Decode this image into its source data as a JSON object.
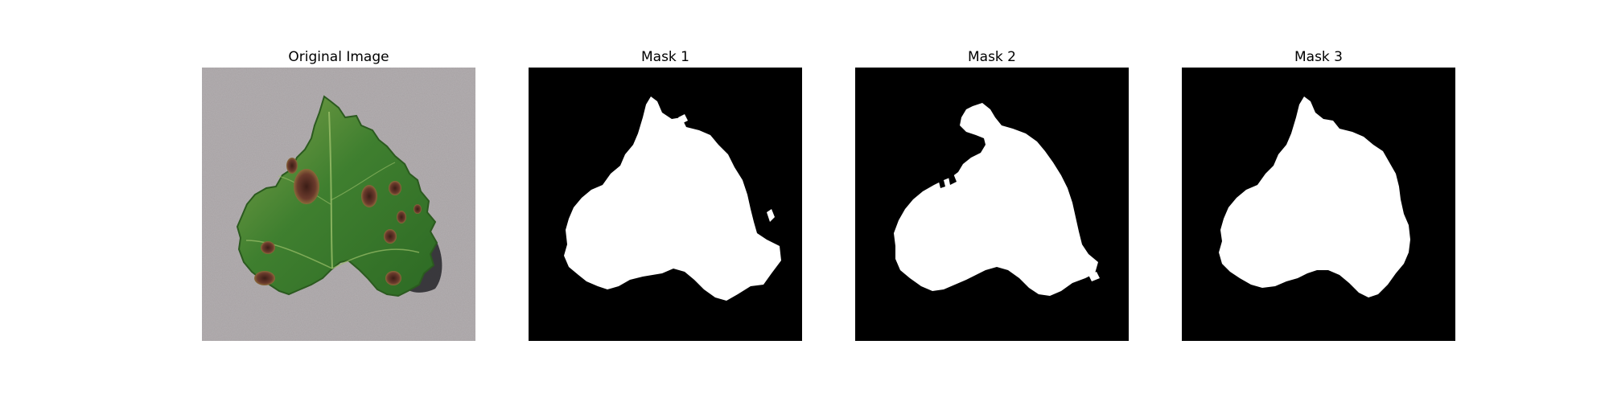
{
  "figure": {
    "panels": [
      {
        "title": "Original Image",
        "kind": "photo",
        "content": "grape-leaf-photo"
      },
      {
        "title": "Mask 1",
        "kind": "mask",
        "content": "segmentation-mask"
      },
      {
        "title": "Mask 2",
        "kind": "mask",
        "content": "segmentation-mask"
      },
      {
        "title": "Mask 3",
        "kind": "mask",
        "content": "segmentation-mask"
      }
    ],
    "colors": {
      "background": "#ffffff",
      "mask_background": "#000000",
      "mask_foreground": "#ffffff",
      "photo_background": "#a7a2a4",
      "leaf_green": "#3f7f2f",
      "leaf_light": "#78a84a",
      "leaf_lesion": "#6a3a2c",
      "shadow": "#2f2f33"
    }
  }
}
